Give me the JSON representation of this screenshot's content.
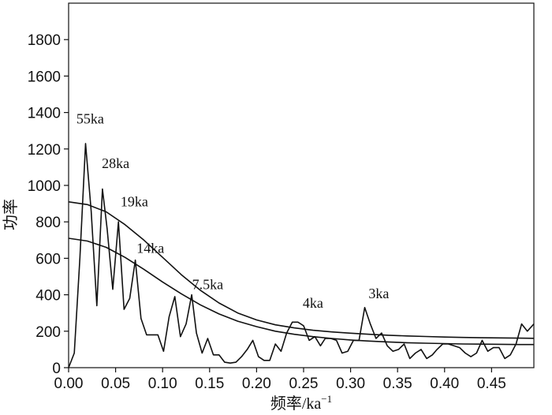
{
  "chart_data": {
    "type": "line",
    "xlabel": "频率/ka",
    "xlabel_sup": "−1",
    "ylabel": "功率",
    "xlim": [
      0.0,
      0.495
    ],
    "ylim": [
      0,
      2000
    ],
    "x_ticks": [
      0.0,
      0.05,
      0.1,
      0.15,
      0.2,
      0.25,
      0.3,
      0.35,
      0.4,
      0.45
    ],
    "x_tick_labels": [
      "0.00",
      "0.05",
      "0.10",
      "0.15",
      "0.20",
      "0.25",
      "0.30",
      "0.35",
      "0.40",
      "0.45"
    ],
    "y_ticks": [
      0,
      200,
      400,
      600,
      800,
      1000,
      1200,
      1400,
      1600,
      1800
    ],
    "y_tick_labels": [
      "0",
      "200",
      "400",
      "600",
      "800",
      "1000",
      "1200",
      "1400",
      "1600",
      "1800"
    ],
    "grid": false,
    "series": [
      {
        "x": [
          0.0,
          0.006,
          0.012,
          0.018,
          0.024,
          0.03,
          0.036,
          0.041,
          0.047,
          0.053,
          0.059,
          0.065,
          0.071,
          0.077,
          0.083,
          0.089,
          0.095,
          0.101,
          0.107,
          0.113,
          0.119,
          0.125,
          0.131,
          0.136,
          0.142,
          0.148,
          0.154,
          0.16,
          0.166,
          0.172,
          0.178,
          0.184,
          0.19,
          0.196,
          0.202,
          0.208,
          0.214,
          0.22,
          0.226,
          0.232,
          0.238,
          0.244,
          0.25,
          0.256,
          0.262,
          0.268,
          0.273,
          0.279,
          0.285,
          0.291,
          0.297,
          0.303,
          0.309,
          0.315,
          0.321,
          0.327,
          0.333,
          0.339,
          0.345,
          0.351,
          0.357,
          0.363,
          0.369,
          0.375,
          0.381,
          0.387,
          0.392,
          0.398,
          0.404,
          0.41,
          0.416,
          0.422,
          0.428,
          0.434,
          0.44,
          0.446,
          0.452,
          0.458,
          0.464,
          0.47,
          0.476,
          0.482,
          0.488,
          0.495
        ],
        "y": [
          0,
          80,
          600,
          1230,
          860,
          340,
          980,
          760,
          430,
          800,
          320,
          380,
          590,
          270,
          180,
          180,
          180,
          90,
          280,
          390,
          170,
          240,
          400,
          190,
          80,
          160,
          70,
          70,
          30,
          25,
          30,
          60,
          100,
          150,
          60,
          40,
          40,
          130,
          90,
          190,
          250,
          250,
          230,
          150,
          170,
          120,
          160,
          160,
          150,
          80,
          90,
          150,
          150,
          330,
          240,
          160,
          190,
          120,
          90,
          100,
          130,
          50,
          80,
          100,
          50,
          70,
          100,
          130,
          130,
          120,
          110,
          80,
          60,
          80,
          150,
          90,
          110,
          110,
          50,
          70,
          130,
          240,
          200,
          240
        ]
      },
      {
        "x": [
          0.0,
          0.02,
          0.04,
          0.06,
          0.08,
          0.1,
          0.12,
          0.14,
          0.16,
          0.18,
          0.2,
          0.22,
          0.24,
          0.26,
          0.28,
          0.3,
          0.32,
          0.34,
          0.36,
          0.38,
          0.4,
          0.42,
          0.44,
          0.46,
          0.48,
          0.495
        ],
        "y": [
          910,
          895,
          855,
          785,
          700,
          605,
          510,
          425,
          355,
          300,
          262,
          235,
          218,
          205,
          196,
          189,
          183,
          178,
          174,
          171,
          168,
          166,
          164,
          163,
          162,
          161
        ]
      },
      {
        "x": [
          0.0,
          0.02,
          0.04,
          0.06,
          0.08,
          0.1,
          0.12,
          0.14,
          0.16,
          0.18,
          0.2,
          0.22,
          0.24,
          0.26,
          0.28,
          0.3,
          0.32,
          0.34,
          0.36,
          0.38,
          0.4,
          0.42,
          0.44,
          0.46,
          0.48,
          0.495
        ],
        "y": [
          710,
          695,
          660,
          605,
          540,
          470,
          405,
          345,
          295,
          255,
          225,
          200,
          183,
          170,
          160,
          152,
          146,
          141,
          137,
          134,
          132,
          130,
          129,
          128,
          127,
          127
        ]
      }
    ],
    "annotations": [
      {
        "text": "55ka",
        "x": 0.023,
        "y": 1340
      },
      {
        "text": "28ka",
        "x": 0.05,
        "y": 1095
      },
      {
        "text": "19ka",
        "x": 0.07,
        "y": 885
      },
      {
        "text": "14ka",
        "x": 0.087,
        "y": 630
      },
      {
        "text": "7.5ka",
        "x": 0.148,
        "y": 430
      },
      {
        "text": "4ka",
        "x": 0.26,
        "y": 330
      },
      {
        "text": "3ka",
        "x": 0.33,
        "y": 380
      }
    ]
  }
}
